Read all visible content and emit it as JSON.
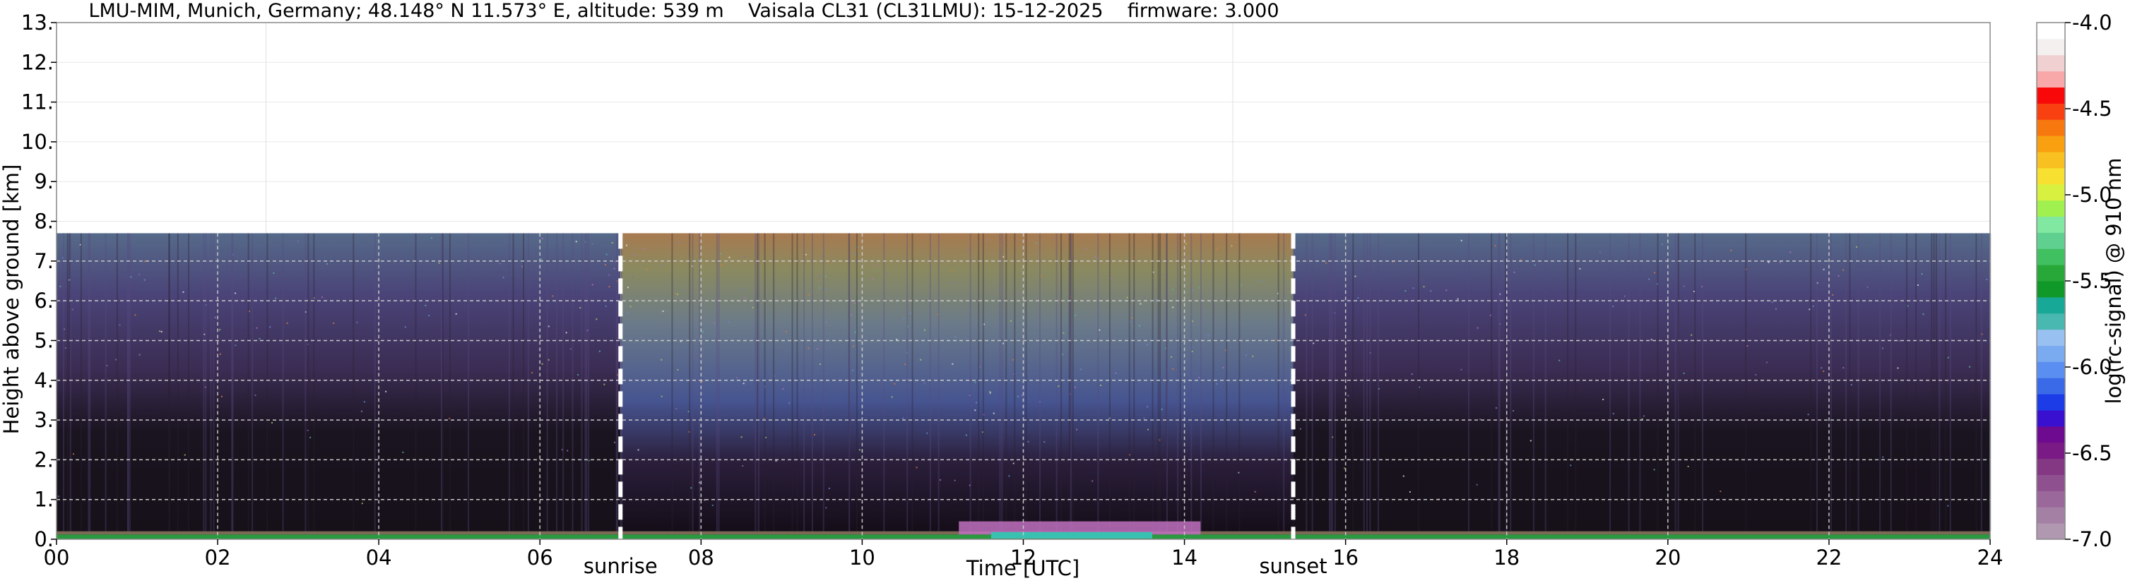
{
  "chart_data": {
    "type": "heatmap",
    "title": "LMU-MIM, Munich, Germany; 48.148° N 11.573° E, altitude: 539 m    Vaisala CL31 (CL31LMU): 15-12-2025    firmware: 3.000",
    "xlabel": "Time [UTC]",
    "ylabel": "Height above ground [km]",
    "xlim": [
      0,
      24
    ],
    "ylim": [
      0,
      13
    ],
    "x_ticks": [
      "00",
      "02",
      "04",
      "06",
      "08",
      "10",
      "12",
      "14",
      "16",
      "18",
      "20",
      "22",
      "24"
    ],
    "y_ticks": [
      "0.",
      "1.",
      "2.",
      "3.",
      "4.",
      "5.",
      "6.",
      "7.",
      "8.",
      "9.",
      "10.",
      "11.",
      "12.",
      "13."
    ],
    "grid": true,
    "measurement_top_km": 7.7,
    "colorbar": {
      "label": "log(rc-signal) @ 910 nm",
      "range": [
        -7.0,
        -4.0
      ],
      "ticks": [
        "-4.0",
        "-4.5",
        "-5.0",
        "-5.5",
        "-6.0",
        "-6.5",
        "-7.0"
      ],
      "colors": [
        "#b098b0",
        "#a580a5",
        "#9a689a",
        "#8f508f",
        "#843884",
        "#7a1a85",
        "#6e0a90",
        "#3a10d0",
        "#1c3ce8",
        "#3a6ae8",
        "#5a8ef0",
        "#7aaaf0",
        "#98c0f0",
        "#48b8b0",
        "#18a898",
        "#109828",
        "#28a838",
        "#40c060",
        "#60d090",
        "#80e8a0",
        "#a0f050",
        "#d8f040",
        "#f8e030",
        "#f8c020",
        "#f8a010",
        "#f87810",
        "#f84010",
        "#f80808",
        "#f8a8a8",
        "#f0d0d0",
        "#f4f0f0",
        "#ffffff"
      ]
    },
    "annotations": [
      {
        "label": "sunrise",
        "time_utc": 7.0
      },
      {
        "label": "sunset",
        "time_utc": 15.35
      }
    ]
  }
}
